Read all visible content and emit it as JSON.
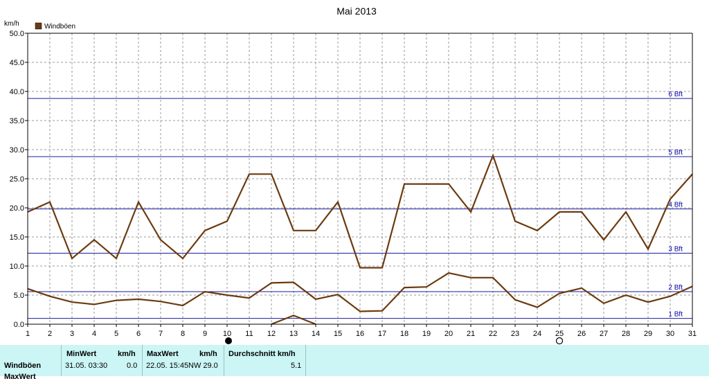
{
  "chart_data": {
    "type": "line",
    "title": "Mai 2013",
    "ylabel": "km/h",
    "legend": {
      "label": "Windböen",
      "color": "#6b3a0f",
      "placement": "top-left"
    },
    "x": [
      1,
      2,
      3,
      4,
      5,
      6,
      7,
      8,
      9,
      10,
      11,
      12,
      13,
      14,
      15,
      16,
      17,
      18,
      19,
      20,
      21,
      22,
      23,
      24,
      25,
      26,
      27,
      28,
      29,
      30,
      31
    ],
    "ylim": [
      0,
      50
    ],
    "yticks": [
      "0.0",
      "5.0",
      "10.0",
      "15.0",
      "20.0",
      "25.0",
      "30.0",
      "35.0",
      "40.0",
      "45.0",
      "50.0"
    ],
    "grid": true,
    "series": [
      {
        "role": "max",
        "color": "#6b3a0f",
        "values": [
          19.3,
          21.0,
          11.3,
          14.5,
          11.3,
          21.0,
          14.5,
          11.3,
          16.1,
          17.7,
          25.8,
          25.8,
          16.1,
          16.1,
          21.0,
          9.7,
          9.7,
          24.1,
          24.1,
          24.1,
          19.3,
          29.0,
          17.7,
          16.1,
          19.3,
          19.3,
          14.5,
          19.3,
          12.9,
          21.5,
          25.8
        ]
      },
      {
        "role": "avg",
        "color": "#6b3a0f",
        "values": [
          6.1,
          4.8,
          3.8,
          3.4,
          4.1,
          4.3,
          3.9,
          3.2,
          5.6,
          5.0,
          4.5,
          7.1,
          7.2,
          4.3,
          5.1,
          2.2,
          2.3,
          6.3,
          6.4,
          8.8,
          8.0,
          8.0,
          4.2,
          2.9,
          5.3,
          6.2,
          3.6,
          5.0,
          3.8,
          4.8,
          6.5
        ]
      },
      {
        "role": "min",
        "color": "#6b3a0f",
        "values": [
          null,
          null,
          null,
          null,
          null,
          null,
          null,
          null,
          null,
          null,
          null,
          0.0,
          1.5,
          0.0,
          null,
          null,
          null,
          null,
          null,
          null,
          null,
          null,
          null,
          null,
          null,
          null,
          null,
          null,
          null,
          null,
          null
        ]
      }
    ],
    "bft_lines": [
      {
        "label": "1 Bft",
        "value": 1.0
      },
      {
        "label": "2 Bft",
        "value": 5.6
      },
      {
        "label": "3 Bft",
        "value": 12.2
      },
      {
        "label": "4 Bft",
        "value": 19.8
      },
      {
        "label": "5 Bft",
        "value": 28.8
      },
      {
        "label": "6 Bft",
        "value": 38.8
      }
    ],
    "moon": {
      "new_moon_day": 10,
      "full_moon_day": 25
    }
  },
  "stats": {
    "row_label": "Windböen",
    "row_label_next": "MaxWert",
    "min_header": "MinWert",
    "min_unit": "km/h",
    "min_date": "31.05.  03:30",
    "min_value": "0.0",
    "max_header": "MaxWert",
    "max_unit": "km/h",
    "max_date": "22.05.  15:45",
    "max_value": "NW 29.0",
    "avg_header": "Durchschnitt km/h",
    "avg_value": "5.1"
  }
}
